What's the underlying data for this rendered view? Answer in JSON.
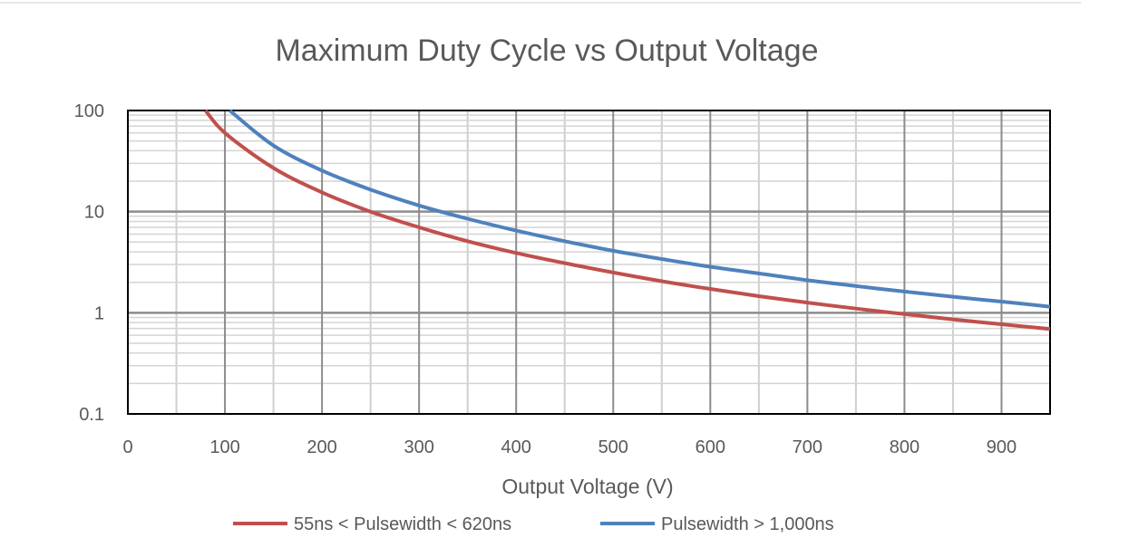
{
  "chart_data": {
    "type": "line",
    "title": "Maximum Duty Cycle vs Output Voltage",
    "xlabel": "Output Voltage (V)",
    "ylabel": "",
    "xlim": [
      0,
      950
    ],
    "ylim": [
      0.1,
      100
    ],
    "yscale": "log",
    "grid": true,
    "legend_position": "bottom",
    "x_ticks": [
      "0",
      "100",
      "200",
      "300",
      "400",
      "500",
      "600",
      "700",
      "800",
      "900"
    ],
    "y_ticks": [
      "0.1",
      "1",
      "10",
      "100"
    ],
    "series": [
      {
        "name": "55ns < Pulsewidth < 620ns",
        "color": "#c0504d",
        "x": [
          80,
          100,
          150,
          200,
          250,
          300,
          350,
          400,
          450,
          500,
          550,
          600,
          650,
          700,
          750,
          800,
          850,
          900,
          950
        ],
        "y": [
          100,
          60,
          27,
          15.5,
          10,
          7,
          5.1,
          3.9,
          3.1,
          2.5,
          2.05,
          1.72,
          1.46,
          1.26,
          1.1,
          0.97,
          0.86,
          0.77,
          0.69
        ]
      },
      {
        "name": "Pulsewidth > 1,000ns",
        "color": "#4f81bd",
        "x": [
          105,
          150,
          200,
          250,
          300,
          350,
          400,
          450,
          500,
          550,
          600,
          650,
          700,
          750,
          800,
          850,
          900,
          950
        ],
        "y": [
          100,
          45,
          25.5,
          16.5,
          11.5,
          8.5,
          6.5,
          5.1,
          4.1,
          3.4,
          2.85,
          2.45,
          2.1,
          1.84,
          1.62,
          1.44,
          1.29,
          1.15
        ]
      }
    ]
  }
}
